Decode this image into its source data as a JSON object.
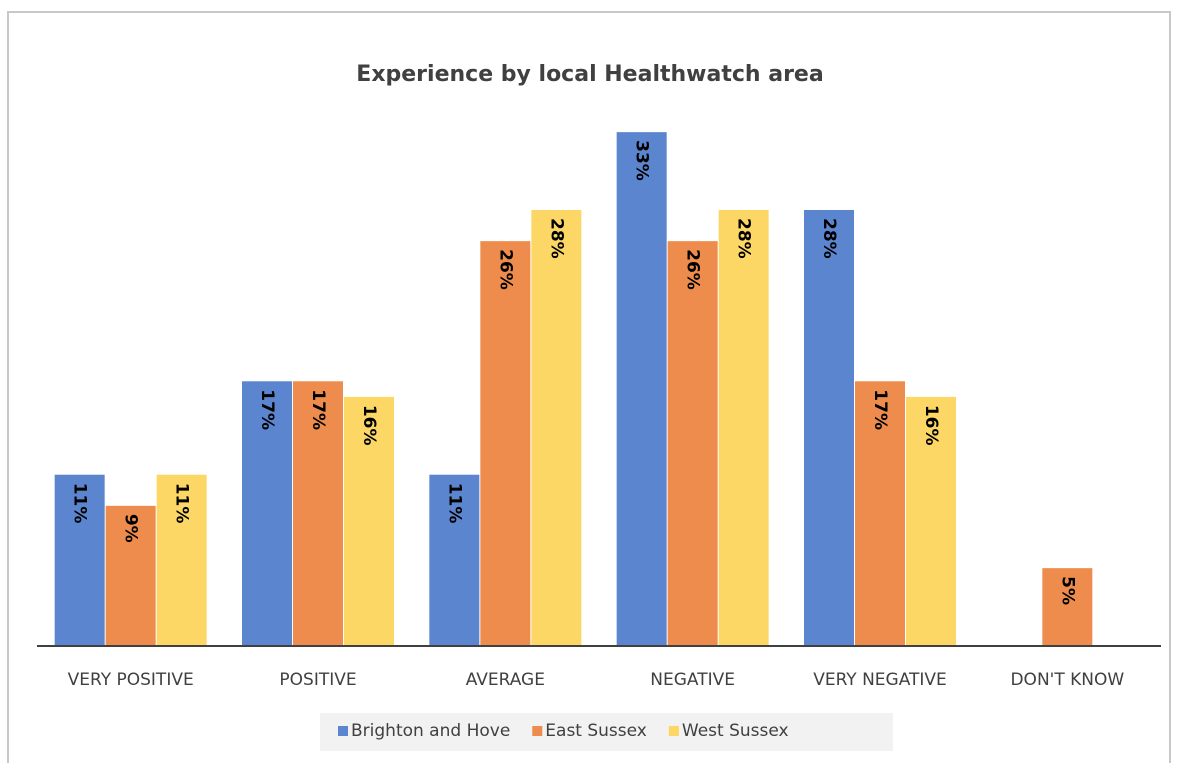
{
  "chart_data": {
    "type": "bar",
    "title": "Experience by local Healthwatch area",
    "categories": [
      "VERY POSITIVE",
      "POSITIVE",
      "AVERAGE",
      "NEGATIVE",
      "VERY NEGATIVE",
      "DON'T KNOW"
    ],
    "series": [
      {
        "name": "Brighton and Hove",
        "color": "#5b85cf",
        "values": [
          11,
          17,
          11,
          33,
          28,
          null
        ],
        "value_labels": [
          "11%",
          "17%",
          "11%",
          "33%",
          "28%",
          null
        ]
      },
      {
        "name": "East Sussex",
        "color": "#ed8c4c",
        "values": [
          9,
          17,
          26,
          26,
          17,
          5
        ],
        "value_labels": [
          "9%",
          "17%",
          "26%",
          "26%",
          "17%",
          "5%"
        ]
      },
      {
        "name": "West Sussex",
        "color": "#fdd765",
        "values": [
          11,
          16,
          28,
          28,
          16,
          null
        ],
        "value_labels": [
          "11%",
          "16%",
          "28%",
          "28%",
          "16%",
          null
        ]
      }
    ],
    "ylim": [
      0,
      35
    ],
    "legend": "bottom"
  }
}
